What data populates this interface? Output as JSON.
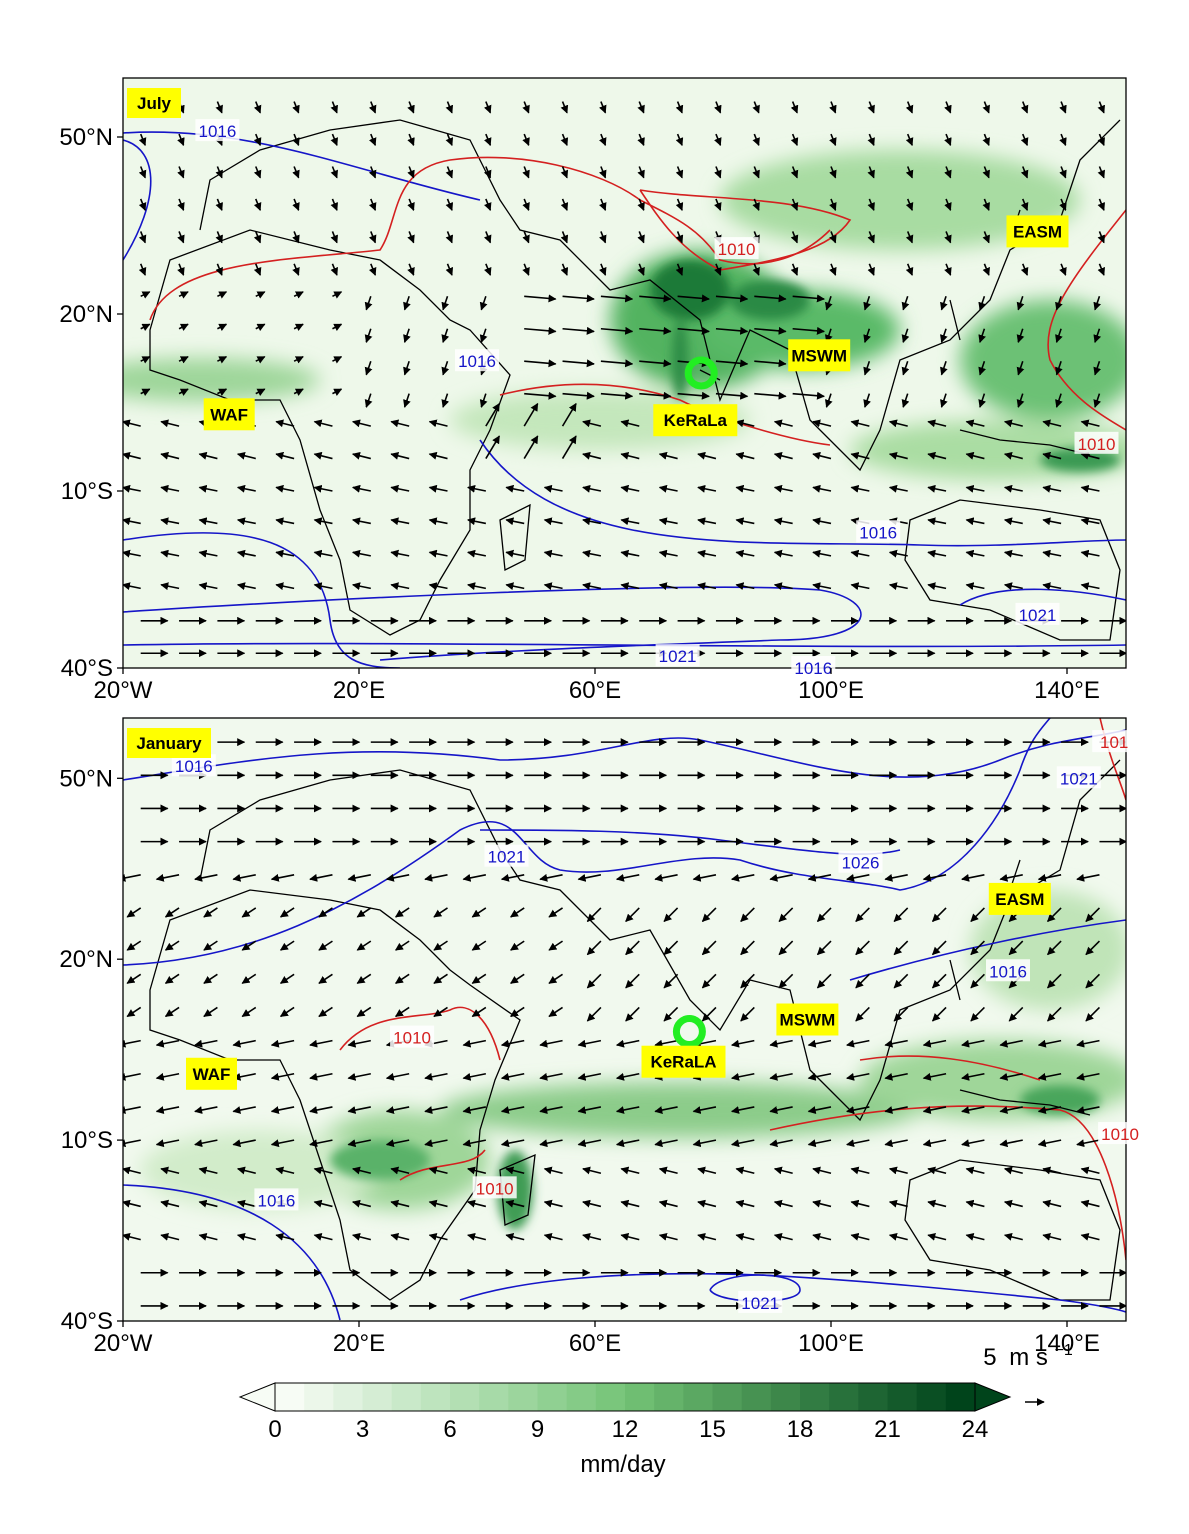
{
  "panels": [
    {
      "month": "July",
      "regions": [
        {
          "code": "WAF",
          "lon": -2,
          "lat": 3
        },
        {
          "code": "KeRaLa",
          "lon": 77,
          "lat": 2
        },
        {
          "code": "MSWM",
          "lon": 98,
          "lat": 13
        },
        {
          "code": "EASM",
          "lon": 135,
          "lat": 34
        }
      ],
      "kerala_marker": {
        "lon": 78,
        "lat": 10
      },
      "isobar_labels": [
        {
          "text": "1016",
          "lon": -4,
          "lat": 51,
          "color": "blue"
        },
        {
          "text": "1016",
          "lon": 40,
          "lat": 12,
          "color": "blue"
        },
        {
          "text": "1010",
          "lon": 84,
          "lat": 31,
          "color": "red"
        },
        {
          "text": "1010",
          "lon": 145,
          "lat": -2,
          "color": "red"
        },
        {
          "text": "1016",
          "lon": 108,
          "lat": -17,
          "color": "blue"
        },
        {
          "text": "1021",
          "lon": 74,
          "lat": -38,
          "color": "blue"
        },
        {
          "text": "1016",
          "lon": 97,
          "lat": -40,
          "color": "blue"
        },
        {
          "text": "1021",
          "lon": 135,
          "lat": -31,
          "color": "blue"
        }
      ]
    },
    {
      "month": "January",
      "regions": [
        {
          "code": "WAF",
          "lon": -5,
          "lat": 1
        },
        {
          "code": "KeRaLA",
          "lon": 75,
          "lat": 3
        },
        {
          "code": "MSWM",
          "lon": 96,
          "lat": 10
        },
        {
          "code": "EASM",
          "lon": 132,
          "lat": 30
        }
      ],
      "kerala_marker": {
        "lon": 76,
        "lat": 8
      },
      "isobar_labels": [
        {
          "text": "1016",
          "lon": -8,
          "lat": 52,
          "color": "blue"
        },
        {
          "text": "1021",
          "lon": 45,
          "lat": 37,
          "color": "blue"
        },
        {
          "text": "1026",
          "lon": 105,
          "lat": 36,
          "color": "blue"
        },
        {
          "text": "1021",
          "lon": 142,
          "lat": 50,
          "color": "blue"
        },
        {
          "text": "1016",
          "lon": 130,
          "lat": 18,
          "color": "blue"
        },
        {
          "text": "1010",
          "lon": 29,
          "lat": 7,
          "color": "red"
        },
        {
          "text": "1010",
          "lon": 43,
          "lat": -18,
          "color": "red"
        },
        {
          "text": "1016",
          "lon": 6,
          "lat": -20,
          "color": "blue"
        },
        {
          "text": "1021",
          "lon": 88,
          "lat": -37,
          "color": "blue"
        },
        {
          "text": "1010",
          "lon": 149,
          "lat": -9,
          "color": "red"
        },
        {
          "text": "101",
          "lon": 148,
          "lat": 56,
          "color": "red"
        }
      ]
    }
  ],
  "axes": {
    "lon_range": [
      -20,
      150
    ],
    "lat_range": [
      -40,
      60
    ],
    "x_ticks": [
      {
        "value": -20,
        "label": "20°W"
      },
      {
        "value": 20,
        "label": "20°E"
      },
      {
        "value": 60,
        "label": "60°E"
      },
      {
        "value": 100,
        "label": "100°E"
      },
      {
        "value": 140,
        "label": "140°E"
      }
    ],
    "y_ticks": [
      {
        "value": 50,
        "label": "50°N"
      },
      {
        "value": 20,
        "label": "20°N"
      },
      {
        "value": -10,
        "label": "10°S"
      },
      {
        "value": -40,
        "label": "40°S"
      }
    ]
  },
  "colorbar": {
    "label": "mm/day",
    "min": 0,
    "max": 24,
    "levels": 24,
    "extend": "both",
    "ticks": [
      "0",
      "3",
      "6",
      "9",
      "12",
      "15",
      "18",
      "21",
      "24"
    ],
    "cmap": "Greens"
  },
  "wind_reference": {
    "value": "5",
    "unit": "m s",
    "exponent": "−1"
  },
  "colors": {
    "isobar_high": "#1515c8",
    "isobar_low": "#d42020",
    "region_bg": "#ffff00",
    "marker": "#22ee22",
    "arrow": "#000000"
  }
}
